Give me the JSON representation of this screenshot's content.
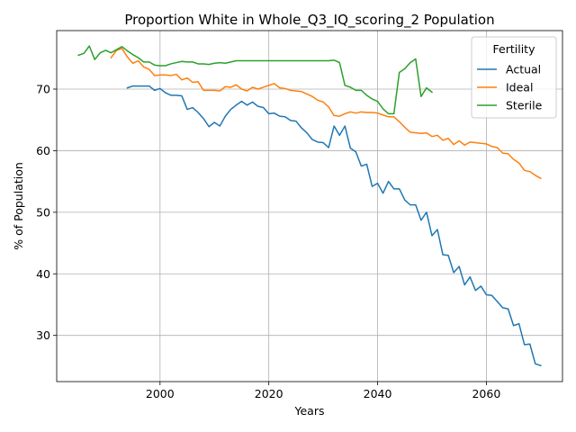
{
  "chart_data": {
    "type": "line",
    "title": "Proportion White in Whole_Q3_IQ_scoring_2 Population",
    "xlabel": "Years",
    "ylabel": "% of Population",
    "xlim": [
      1981,
      2074
    ],
    "ylim": [
      22.5,
      79.5
    ],
    "xticks": [
      2000,
      2020,
      2040,
      2060
    ],
    "yticks": [
      30,
      40,
      50,
      60,
      70
    ],
    "grid": true,
    "legend": {
      "title": "Fertility",
      "position": "top-right"
    },
    "series": [
      {
        "name": "Actual",
        "color": "#1f77b4",
        "x": [
          1994,
          1995,
          1996,
          1997,
          1998,
          1999,
          2000,
          2001,
          2002,
          2003,
          2004,
          2005,
          2006,
          2007,
          2008,
          2009,
          2010,
          2011,
          2012,
          2013,
          2014,
          2015,
          2016,
          2017,
          2018,
          2019,
          2020,
          2021,
          2022,
          2023,
          2024,
          2025,
          2026,
          2027,
          2028,
          2029,
          2030,
          2031,
          2032,
          2033,
          2034,
          2035,
          2036,
          2037,
          2038,
          2039,
          2040,
          2041,
          2042,
          2043,
          2044,
          2045,
          2046,
          2047,
          2048,
          2049,
          2050,
          2051,
          2052,
          2053,
          2054,
          2055,
          2056,
          2057,
          2058,
          2059,
          2060,
          2061,
          2062,
          2063,
          2064,
          2065,
          2066,
          2067,
          2068,
          2069,
          2070
        ],
        "values": [
          70.2,
          70.5,
          70.5,
          70.5,
          70.5,
          69.8,
          70.1,
          69.4,
          69.0,
          69.0,
          68.9,
          66.7,
          67.0,
          66.2,
          65.2,
          63.9,
          64.6,
          64.0,
          65.6,
          66.7,
          67.4,
          68.0,
          67.4,
          67.9,
          67.2,
          67.0,
          66.0,
          66.1,
          65.6,
          65.5,
          64.9,
          64.8,
          63.7,
          62.9,
          61.8,
          61.4,
          61.3,
          60.5,
          64.0,
          62.5,
          64.0,
          60.4,
          59.8,
          57.5,
          57.8,
          54.2,
          54.7,
          53.1,
          55.0,
          53.8,
          53.8,
          52.0,
          51.2,
          51.2,
          48.7,
          50.0,
          46.2,
          47.2,
          43.1,
          43.0,
          40.2,
          41.2,
          38.2,
          39.5,
          37.3,
          38.0,
          36.6,
          36.5,
          35.5,
          34.5,
          34.3,
          31.6,
          31.9,
          28.5,
          28.6,
          25.4,
          25.1
        ]
      },
      {
        "name": "Ideal",
        "color": "#ff7f0e",
        "x": [
          1991,
          1992,
          1993,
          1994,
          1995,
          1996,
          1997,
          1998,
          1999,
          2000,
          2001,
          2002,
          2003,
          2004,
          2005,
          2006,
          2007,
          2008,
          2009,
          2010,
          2011,
          2012,
          2013,
          2014,
          2015,
          2016,
          2017,
          2018,
          2019,
          2020,
          2021,
          2022,
          2023,
          2024,
          2025,
          2026,
          2027,
          2028,
          2029,
          2030,
          2031,
          2032,
          2033,
          2034,
          2035,
          2036,
          2037,
          2038,
          2039,
          2040,
          2041,
          2042,
          2043,
          2044,
          2045,
          2046,
          2047,
          2048,
          2049,
          2050,
          2051,
          2052,
          2053,
          2054,
          2055,
          2056,
          2057,
          2058,
          2059,
          2060,
          2061,
          2062,
          2063,
          2064,
          2065,
          2066,
          2067,
          2068,
          2069,
          2070
        ],
        "values": [
          75.1,
          76.3,
          76.6,
          75.2,
          74.2,
          74.6,
          73.6,
          73.2,
          72.2,
          72.3,
          72.3,
          72.2,
          72.4,
          71.5,
          71.8,
          71.1,
          71.2,
          69.8,
          69.8,
          69.8,
          69.7,
          70.4,
          70.3,
          70.7,
          70.0,
          69.7,
          70.3,
          70.0,
          70.3,
          70.6,
          70.9,
          70.2,
          70.1,
          69.8,
          69.7,
          69.6,
          69.2,
          68.8,
          68.2,
          67.9,
          67.1,
          65.7,
          65.6,
          66.0,
          66.3,
          66.1,
          66.3,
          66.2,
          66.2,
          66.1,
          65.8,
          65.5,
          65.5,
          64.7,
          63.8,
          63.0,
          62.9,
          62.8,
          62.9,
          62.3,
          62.5,
          61.7,
          62.0,
          61.0,
          61.6,
          60.9,
          61.4,
          61.3,
          61.2,
          61.1,
          60.7,
          60.5,
          59.6,
          59.5,
          58.6,
          58.0,
          56.8,
          56.6,
          56.0,
          55.5
        ]
      },
      {
        "name": "Sterile",
        "color": "#2ca02c",
        "x": [
          1985,
          1986,
          1987,
          1988,
          1989,
          1990,
          1991,
          1992,
          1993,
          1994,
          1995,
          1996,
          1997,
          1998,
          1999,
          2000,
          2001,
          2002,
          2003,
          2004,
          2005,
          2006,
          2007,
          2008,
          2009,
          2010,
          2011,
          2012,
          2013,
          2014,
          2015,
          2016,
          2017,
          2018,
          2019,
          2020,
          2021,
          2022,
          2023,
          2024,
          2025,
          2026,
          2027,
          2028,
          2029,
          2030,
          2031,
          2032,
          2033,
          2034,
          2035,
          2036,
          2037,
          2038,
          2039,
          2040,
          2041,
          2042,
          2043,
          2044,
          2045,
          2046,
          2047,
          2048,
          2049,
          2050
        ],
        "values": [
          75.5,
          75.8,
          77.0,
          74.8,
          75.9,
          76.3,
          75.9,
          76.4,
          76.9,
          76.2,
          75.6,
          75.1,
          74.4,
          74.4,
          73.9,
          73.8,
          73.8,
          74.1,
          74.3,
          74.5,
          74.4,
          74.4,
          74.1,
          74.1,
          74.0,
          74.2,
          74.3,
          74.2,
          74.4,
          74.6,
          74.6,
          74.6,
          74.6,
          74.6,
          74.6,
          74.6,
          74.6,
          74.6,
          74.6,
          74.6,
          74.6,
          74.6,
          74.6,
          74.6,
          74.6,
          74.6,
          74.6,
          74.7,
          74.3,
          70.6,
          70.3,
          69.8,
          69.8,
          69.0,
          68.4,
          68.0,
          66.8,
          66.0,
          66.0,
          72.7,
          73.3,
          74.3,
          74.9,
          68.8,
          70.2,
          69.5
        ]
      }
    ]
  }
}
